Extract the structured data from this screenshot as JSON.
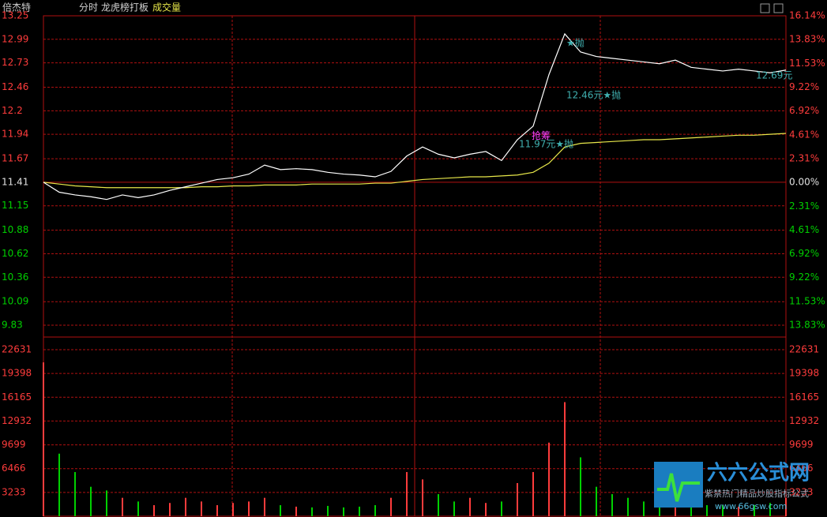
{
  "header": {
    "title": "倍杰特",
    "tabs": [
      "分时",
      "龙虎榜打板"
    ]
  },
  "chart_data": [
    {
      "type": "line",
      "title": "分时",
      "series": [
        {
          "name": "价格",
          "color": "#ffffff",
          "values": [
            11.41,
            11.3,
            11.27,
            11.25,
            11.22,
            11.27,
            11.24,
            11.27,
            11.32,
            11.36,
            11.4,
            11.44,
            11.46,
            11.5,
            11.6,
            11.55,
            11.56,
            11.55,
            11.52,
            11.5,
            11.49,
            11.47,
            11.53,
            11.7,
            11.8,
            11.72,
            11.68,
            11.72,
            11.75,
            11.65,
            11.88,
            12.03,
            12.6,
            13.05,
            12.85,
            12.8,
            12.78,
            12.76,
            12.74,
            12.72,
            12.76,
            12.68,
            12.66,
            12.64,
            12.66,
            12.64,
            12.62,
            12.65
          ]
        },
        {
          "name": "均价",
          "color": "#e8e84a",
          "values": [
            11.41,
            11.39,
            11.37,
            11.36,
            11.35,
            11.35,
            11.35,
            11.35,
            11.35,
            11.35,
            11.36,
            11.36,
            11.37,
            11.37,
            11.38,
            11.38,
            11.38,
            11.39,
            11.39,
            11.39,
            11.39,
            11.4,
            11.4,
            11.42,
            11.44,
            11.45,
            11.46,
            11.47,
            11.47,
            11.48,
            11.49,
            11.52,
            11.62,
            11.8,
            11.84,
            11.85,
            11.86,
            11.87,
            11.88,
            11.88,
            11.89,
            11.9,
            11.91,
            11.92,
            11.93,
            11.93,
            11.94,
            11.95
          ]
        }
      ],
      "ylim": [
        9.83,
        13.25
      ],
      "yticks": [
        13.25,
        12.99,
        12.73,
        12.46,
        12.2,
        11.94,
        11.67,
        11.41,
        11.15,
        10.88,
        10.62,
        10.36,
        10.09,
        9.83
      ],
      "y2lim": [
        -13.83,
        16.14
      ],
      "y2ticks": [
        {
          "value": 16.14,
          "label": "16.14%"
        },
        {
          "value": 13.83,
          "label": "13.83%"
        },
        {
          "value": 11.53,
          "label": "11.53%"
        },
        {
          "value": 9.22,
          "label": "9.22%"
        },
        {
          "value": 6.92,
          "label": "6.92%"
        },
        {
          "value": 4.61,
          "label": "4.61%"
        },
        {
          "value": 2.31,
          "label": "2.31%"
        },
        {
          "value": 0,
          "label": "0.00%"
        },
        {
          "value": -2.31,
          "label": "2.31%"
        },
        {
          "value": -4.61,
          "label": "4.61%"
        },
        {
          "value": -6.92,
          "label": "6.92%"
        },
        {
          "value": -9.22,
          "label": "9.22%"
        },
        {
          "value": -11.53,
          "label": "11.53%"
        },
        {
          "value": -13.83,
          "label": "13.83%"
        }
      ],
      "annotations": [
        {
          "text": "★抛",
          "index": 33
        },
        {
          "text": "抢筹",
          "index": 32
        },
        {
          "text": "12.46元★抛",
          "index": 33
        },
        {
          "text": "11.97元★抛",
          "index": 30
        },
        {
          "text": "12.69元",
          "index": 45
        }
      ],
      "grid": true
    },
    {
      "type": "bar",
      "title": "成交量",
      "values": [
        20900,
        8500,
        6000,
        4000,
        3500,
        2500,
        2000,
        1500,
        1800,
        2500,
        2000,
        1500,
        1800,
        2000,
        2500,
        1500,
        1300,
        1200,
        1400,
        1200,
        1300,
        1500,
        2500,
        6000,
        5000,
        3000,
        2000,
        2500,
        1800,
        2000,
        4500,
        6000,
        10000,
        15500,
        8000,
        4000,
        3000,
        2500,
        2000,
        1800,
        2500,
        2000,
        1500,
        1500,
        1300,
        1500,
        1800,
        2500
      ],
      "up_color": "#ff3c3c",
      "down_color": "#00d000",
      "ylim": [
        0,
        22631
      ],
      "yticks": [
        22631,
        19398,
        16165,
        12932,
        9699,
        6466,
        3233
      ],
      "grid": true
    }
  ],
  "watermark": {
    "name": "六六公式网",
    "slogan": "紫禁热门精品炒股指标公式",
    "url": "www.66gsw.com"
  }
}
